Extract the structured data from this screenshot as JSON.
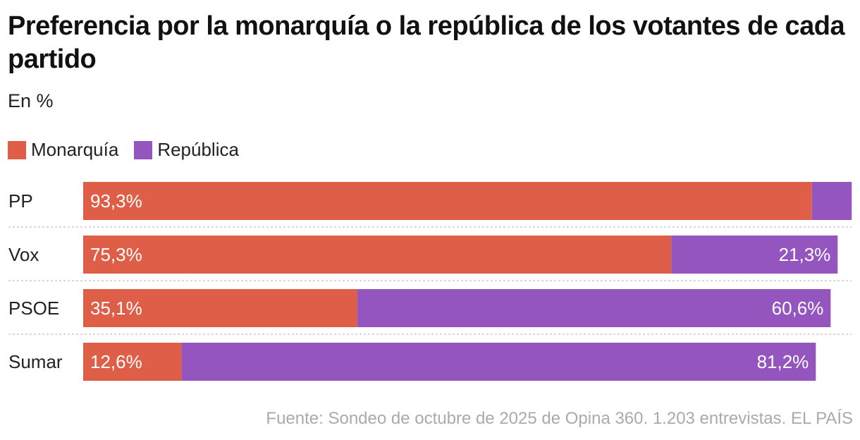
{
  "chart_data": {
    "type": "bar",
    "orientation": "horizontal",
    "stacked": true,
    "title": "Preferencia por la monarquía o la república de los votantes de cada partido",
    "subtitle": "En %",
    "categories": [
      "PP",
      "Vox",
      "PSOE",
      "Sumar"
    ],
    "series": [
      {
        "name": "Monarquía",
        "color": "#de5e47",
        "values": [
          93.3,
          75.3,
          35.1,
          12.6
        ],
        "labels": [
          "93,3%",
          "75,3%",
          "35,1%",
          "12,6%"
        ]
      },
      {
        "name": "República",
        "color": "#9455be",
        "values": [
          5.1,
          21.3,
          60.6,
          81.2
        ],
        "labels": [
          "",
          "21,3%",
          "60,6%",
          "81,2%"
        ]
      }
    ],
    "legend": "top-left",
    "source": "Fuente: Sondeo de octubre de 2025 de Opina 360. 1.203 entrevistas. EL PAÍS"
  }
}
